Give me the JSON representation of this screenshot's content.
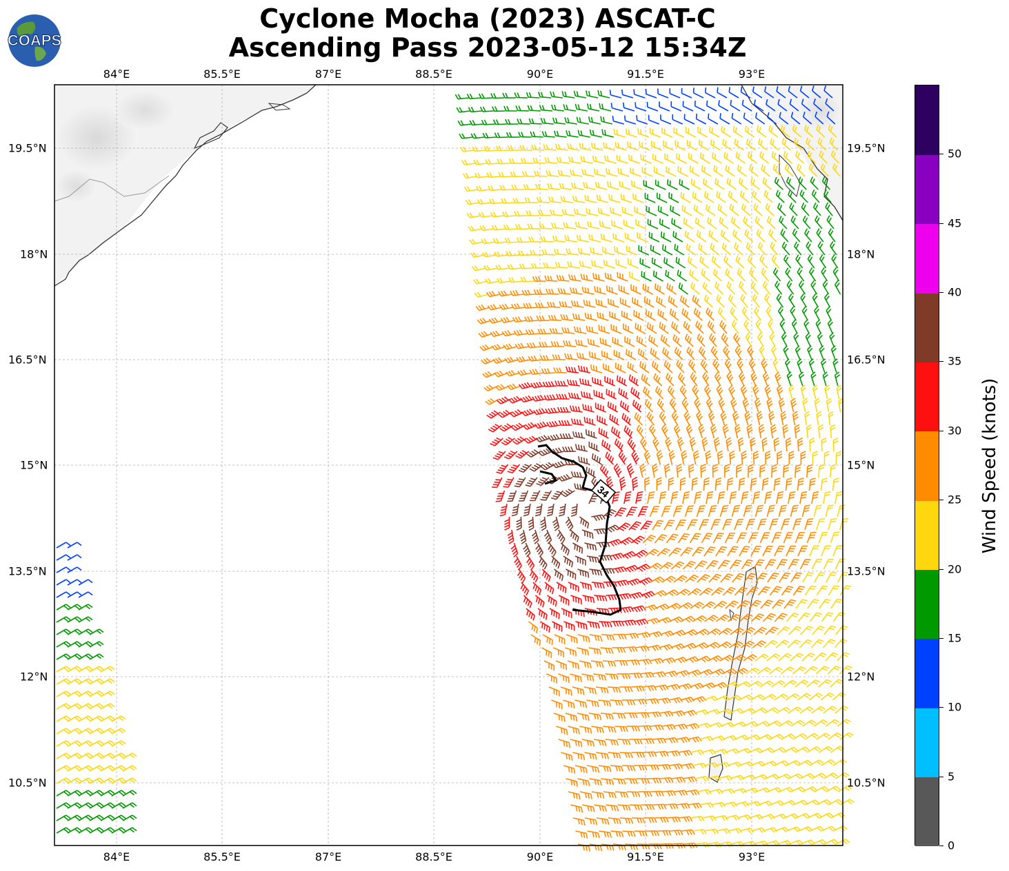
{
  "title_line1": "Cyclone Mocha (2023) ASCAT-C",
  "title_line2": "Ascending Pass 2023-05-12 15:34Z",
  "logo_text": "COAPS",
  "lon_ticks": [
    "84°E",
    "85.5°E",
    "87°E",
    "88.5°E",
    "90°E",
    "91.5°E",
    "93°E"
  ],
  "lat_ticks": [
    "19.5°N",
    "18°N",
    "16.5°N",
    "15°N",
    "13.5°N",
    "12°N",
    "10.5°N"
  ],
  "contour_label": "34",
  "colorbar": {
    "title": "Wind Speed (knots)",
    "ticks": [
      "0",
      "5",
      "10",
      "15",
      "20",
      "25",
      "30",
      "35",
      "40",
      "45",
      "50"
    ],
    "colors": [
      "#585858",
      "#00bfff",
      "#0040ff",
      "#009900",
      "#ffd70f",
      "#ff8c00",
      "#ff1010",
      "#7f3a28",
      "#ee00ee",
      "#8a00c0",
      "#2e0060"
    ]
  }
}
